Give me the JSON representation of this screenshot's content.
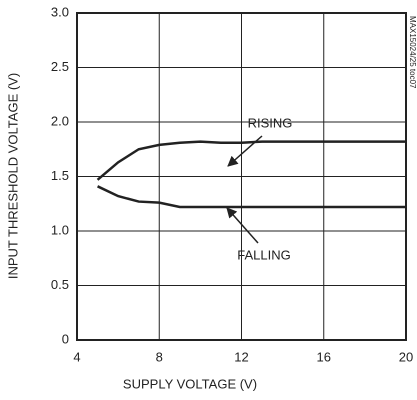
{
  "chart_data": {
    "type": "line",
    "x_label": "SUPPLY VOLTAGE (V)",
    "y_label": "INPUT THRESHOLD VOLTAGE (V)",
    "x": [
      5,
      6,
      7,
      8,
      9,
      10,
      11,
      12,
      13,
      14,
      16,
      18,
      20
    ],
    "series": [
      {
        "name": "RISING",
        "color": "#222222",
        "values": [
          1.47,
          1.63,
          1.75,
          1.79,
          1.81,
          1.82,
          1.81,
          1.81,
          1.82,
          1.82,
          1.82,
          1.82,
          1.82
        ]
      },
      {
        "name": "FALLING",
        "color": "#222222",
        "values": [
          1.41,
          1.32,
          1.27,
          1.26,
          1.22,
          1.22,
          1.22,
          1.22,
          1.22,
          1.22,
          1.22,
          1.22,
          1.22
        ]
      }
    ],
    "annotations": [
      "MAX15024/25 toc07"
    ],
    "xlim": [
      4,
      20
    ],
    "xticks": [
      4,
      8,
      12,
      16,
      20
    ],
    "ylim": [
      0,
      3
    ],
    "yticks": [
      0,
      0.5,
      {
        "value": 1,
        "label": "1.0"
      },
      1.5,
      {
        "value": 2,
        "label": "2.0"
      },
      2.5,
      {
        "value": 3,
        "label": "3.0"
      }
    ],
    "grid": true
  }
}
